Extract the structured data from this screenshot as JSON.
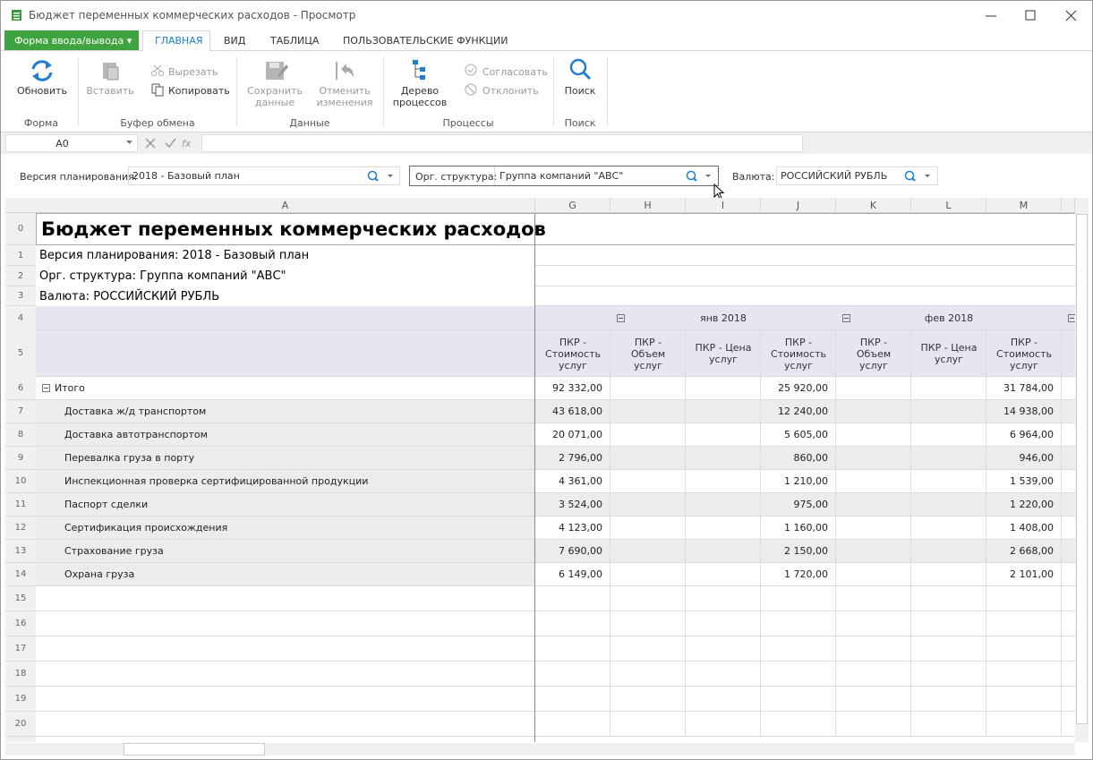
{
  "window": {
    "title": "Бюджет переменных коммерческих расходов - Просмотр"
  },
  "ribbon": {
    "menu_button": "Форма ввода/вывода",
    "tabs": [
      "ГЛАВНАЯ",
      "ВИД",
      "ТАБЛИЦА",
      "ПОЛЬЗОВАТЕЛЬСКИЕ ФУНКЦИИ"
    ],
    "groups": [
      {
        "label": "Форма",
        "buttons": [
          "Обновить"
        ]
      },
      {
        "label": "Буфер обмена",
        "buttons": [
          "Вставить",
          "Вырезать",
          "Копировать"
        ]
      },
      {
        "label": "Данные",
        "buttons": [
          "Сохранить данные",
          "Отменить изменения"
        ]
      },
      {
        "label": "Процессы",
        "buttons": [
          "Дерево процессов",
          "Согласовать",
          "Отклонить"
        ]
      },
      {
        "label": "Поиск",
        "buttons": [
          "Поиск"
        ]
      }
    ]
  },
  "formula_bar": {
    "cell": "A0"
  },
  "filters": [
    {
      "label": "Версия планирования:",
      "value": "2018 - Базовый план"
    },
    {
      "label": "Орг. структура:",
      "value": "Группа компаний \"АВС\""
    },
    {
      "label": "Валюта:",
      "value": "РОССИЙСКИЙ РУБЛЬ"
    }
  ],
  "sheet": {
    "columns": [
      "A",
      "G",
      "H",
      "I",
      "J",
      "K",
      "L",
      "M"
    ],
    "row_numbers": [
      0,
      1,
      2,
      3,
      4,
      5,
      6,
      7,
      8,
      9,
      10,
      11,
      12,
      13,
      14,
      15,
      16,
      17,
      18,
      19,
      20
    ],
    "title": "Бюджет переменных коммерческих расходов",
    "info": [
      "Версия планирования: 2018 - Базовый план",
      "Орг. структура: Группа компаний \"АВС\"",
      "Валюта: РОССИЙСКИЙ РУБЛЬ"
    ],
    "periods": [
      "янв 2018",
      "фев 2018"
    ],
    "measures": [
      "ПКР - Стоимость услуг",
      "ПКР - Объем услуг",
      "ПКР - Цена услуг",
      "ПКР - Стоимость услуг",
      "ПКР - Объем услуг",
      "ПКР - Цена услуг",
      "ПКР - Стоимость услуг"
    ],
    "rows": [
      {
        "name": "Итого",
        "total": "92 332,00",
        "jan": "25 920,00",
        "feb": "31 784,00"
      },
      {
        "name": "Доставка ж/д транспортом",
        "total": "43 618,00",
        "jan": "12 240,00",
        "feb": "14 938,00"
      },
      {
        "name": "Доставка автотранспортом",
        "total": "20 071,00",
        "jan": "5 605,00",
        "feb": "6 964,00"
      },
      {
        "name": "Перевалка груза в порту",
        "total": "2 796,00",
        "jan": "860,00",
        "feb": "946,00"
      },
      {
        "name": "Инспекционная проверка сертифицированной продукции",
        "total": "4 361,00",
        "jan": "1 210,00",
        "feb": "1 539,00"
      },
      {
        "name": "Паспорт сделки",
        "total": "3 524,00",
        "jan": "975,00",
        "feb": "1 220,00"
      },
      {
        "name": "Сертификация происхождения",
        "total": "4 123,00",
        "jan": "1 160,00",
        "feb": "1 408,00"
      },
      {
        "name": "Страхование груза",
        "total": "7 690,00",
        "jan": "2 150,00",
        "feb": "2 668,00"
      },
      {
        "name": "Охрана груза",
        "total": "6 149,00",
        "jan": "1 720,00",
        "feb": "2 101,00"
      }
    ]
  }
}
